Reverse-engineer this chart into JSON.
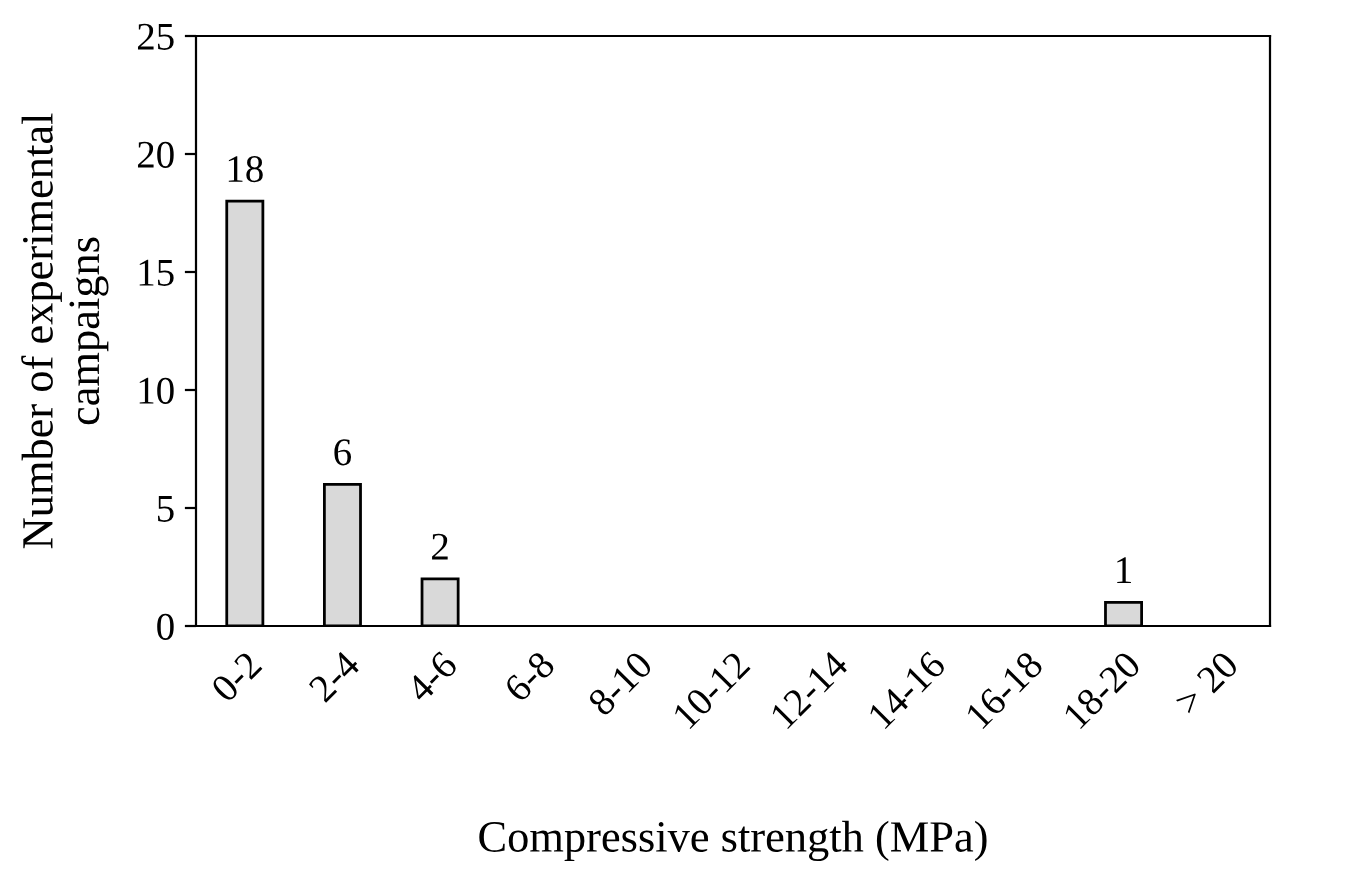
{
  "chart_data": {
    "type": "bar",
    "xlabel": "Compressive strength (MPa)",
    "ylabel": "Number of experimental\ncampaigns",
    "categories": [
      "0-2",
      "2-4",
      "4-6",
      "6-8",
      "8-10",
      "10-12",
      "12-14",
      "14-16",
      "16-18",
      "18-20",
      "> 20"
    ],
    "values": [
      18,
      6,
      2,
      0,
      0,
      0,
      0,
      0,
      0,
      1,
      0
    ],
    "value_labels": [
      "18",
      "6",
      "2",
      null,
      null,
      null,
      null,
      null,
      null,
      "1",
      null
    ],
    "color": "#d9d9d9",
    "ylim": [
      0,
      25
    ],
    "yticks": [
      0,
      5,
      10,
      15,
      20,
      25
    ],
    "grid": false,
    "legend": false
  }
}
